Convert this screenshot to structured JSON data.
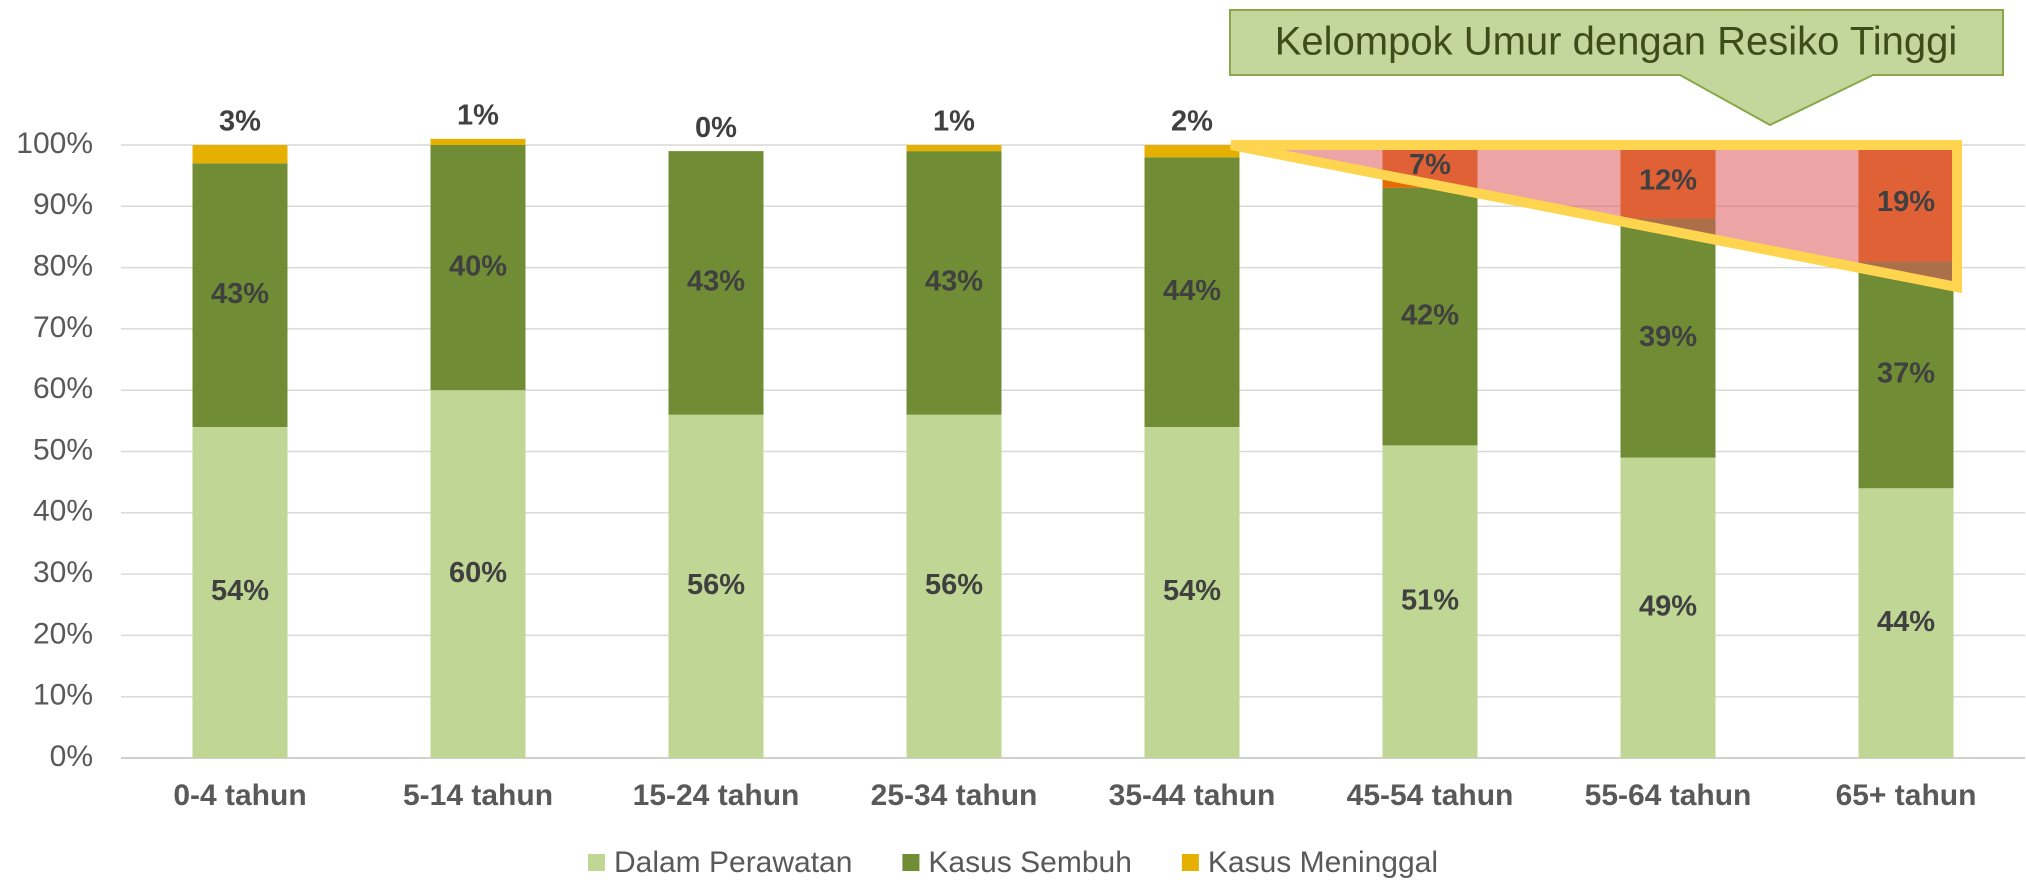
{
  "chart_data": {
    "type": "stacked_bar",
    "annotation": "Kelompok Umur dengan Resiko Tinggi",
    "categories": [
      "0-4 tahun",
      "5-14 tahun",
      "15-24 tahun",
      "25-34 tahun",
      "35-44 tahun",
      "45-54 tahun",
      "55-64 tahun",
      "65+ tahun"
    ],
    "series": [
      {
        "name": "Dalam Perawatan",
        "color": "#c0d695",
        "values": [
          54,
          60,
          56,
          56,
          54,
          51,
          49,
          44
        ],
        "value_labels": [
          "54%",
          "60%",
          "56%",
          "56%",
          "54%",
          "51%",
          "49%",
          "44%"
        ]
      },
      {
        "name": "Kasus Sembuh",
        "color": "#708c35",
        "values": [
          43,
          40,
          43,
          43,
          44,
          42,
          39,
          37
        ],
        "value_labels": [
          "43%",
          "40%",
          "43%",
          "43%",
          "44%",
          "42%",
          "39%",
          "37%"
        ]
      },
      {
        "name": "Kasus Meninggal",
        "color": "#e5b000",
        "point_colors": [
          "#e5b000",
          "#e5b000",
          "#e5b000",
          "#e5b000",
          "#e5b000",
          "#e36c09",
          "#e36c09",
          "#e36c09"
        ],
        "values": [
          3,
          1,
          0,
          1,
          2,
          7,
          12,
          19
        ],
        "value_labels": [
          "3%",
          "1%",
          "0%",
          "1%",
          "2%",
          "7%",
          "12%",
          "19%"
        ]
      }
    ],
    "ylim": [
      0,
      100
    ],
    "yticks": [
      {
        "value": 0,
        "label": "0%"
      },
      {
        "value": 10,
        "label": "10%"
      },
      {
        "value": 20,
        "label": "20%"
      },
      {
        "value": 30,
        "label": "30%"
      },
      {
        "value": 40,
        "label": "40%"
      },
      {
        "value": 50,
        "label": "50%"
      },
      {
        "value": 60,
        "label": "60%"
      },
      {
        "value": 70,
        "label": "70%"
      },
      {
        "value": 80,
        "label": "80%"
      },
      {
        "value": 90,
        "label": "90%"
      },
      {
        "value": 100,
        "label": "100%"
      }
    ],
    "grid": true,
    "legend": "bottom"
  }
}
